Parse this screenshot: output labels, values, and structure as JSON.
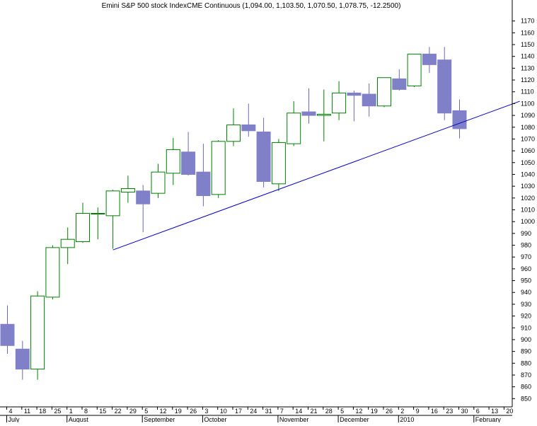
{
  "chart_data": {
    "type": "candlestick",
    "title": "Emini S&P 500 stock IndexCME Continuous (1,094.00, 1,103.50, 1,070.50, 1,078.75, -12.2500)",
    "ylim": [
      843,
      1177
    ],
    "y_ticks": [
      850,
      860,
      870,
      880,
      890,
      900,
      910,
      920,
      930,
      940,
      950,
      960,
      970,
      980,
      990,
      1000,
      1010,
      1020,
      1030,
      1040,
      1050,
      1060,
      1070,
      1080,
      1090,
      1100,
      1110,
      1120,
      1130,
      1140,
      1150,
      1160,
      1170
    ],
    "x_tick_labels": [
      "4",
      "11",
      "18",
      "25",
      "1",
      "8",
      "15",
      "22",
      "29",
      "5",
      "12",
      "19",
      "26",
      "3",
      "10",
      "17",
      "24",
      "31",
      "7",
      "14",
      "21",
      "28",
      "5",
      "12",
      "19",
      "26",
      "2",
      "9",
      "16",
      "23",
      "30",
      "6",
      "13",
      "20"
    ],
    "month_labels": [
      {
        "label": "July",
        "index": 0
      },
      {
        "label": "August",
        "index": 4
      },
      {
        "label": "September",
        "index": 9
      },
      {
        "label": "October",
        "index": 13
      },
      {
        "label": "November",
        "index": 18
      },
      {
        "label": "December",
        "index": 22
      },
      {
        "label": "2010",
        "index": 26
      },
      {
        "label": "February",
        "index": 31
      }
    ],
    "candles": [
      {
        "o": 913,
        "h": 929,
        "l": 888,
        "c": 895
      },
      {
        "o": 892,
        "h": 899,
        "l": 866,
        "c": 875
      },
      {
        "o": 875,
        "h": 941,
        "l": 866,
        "c": 937
      },
      {
        "o": 936,
        "h": 980,
        "l": 934,
        "c": 978
      },
      {
        "o": 978,
        "h": 995,
        "l": 964,
        "c": 985
      },
      {
        "o": 983,
        "h": 1016,
        "l": 982,
        "c": 1007
      },
      {
        "o": 1007,
        "h": 1012,
        "l": 985,
        "c": 1007
      },
      {
        "o": 1005,
        "h": 1027,
        "l": 977,
        "c": 1026
      },
      {
        "o": 1025,
        "h": 1039,
        "l": 1016,
        "c": 1028
      },
      {
        "o": 1026,
        "h": 1031,
        "l": 991,
        "c": 1015
      },
      {
        "o": 1024,
        "h": 1049,
        "l": 1020,
        "c": 1042
      },
      {
        "o": 1041,
        "h": 1071,
        "l": 1031,
        "c": 1061
      },
      {
        "o": 1059,
        "h": 1076,
        "l": 1039,
        "c": 1040
      },
      {
        "o": 1042,
        "h": 1066,
        "l": 1013,
        "c": 1022
      },
      {
        "o": 1023,
        "h": 1069,
        "l": 1020,
        "c": 1068
      },
      {
        "o": 1068,
        "h": 1096,
        "l": 1064,
        "c": 1082
      },
      {
        "o": 1082,
        "h": 1100,
        "l": 1072,
        "c": 1077
      },
      {
        "o": 1076,
        "h": 1088,
        "l": 1029,
        "c": 1034
      },
      {
        "o": 1032,
        "h": 1070,
        "l": 1026,
        "c": 1067
      },
      {
        "o": 1066,
        "h": 1102,
        "l": 1064,
        "c": 1092
      },
      {
        "o": 1093,
        "h": 1113,
        "l": 1083,
        "c": 1090
      },
      {
        "o": 1090,
        "h": 1112,
        "l": 1068,
        "c": 1091
      },
      {
        "o": 1092,
        "h": 1119,
        "l": 1086,
        "c": 1109
      },
      {
        "o": 1109,
        "h": 1111,
        "l": 1085,
        "c": 1107
      },
      {
        "o": 1108,
        "h": 1117,
        "l": 1089,
        "c": 1098
      },
      {
        "o": 1098,
        "h": 1122,
        "l": 1097,
        "c": 1122
      },
      {
        "o": 1121,
        "h": 1129,
        "l": 1111,
        "c": 1112
      },
      {
        "o": 1115,
        "h": 1142,
        "l": 1114,
        "c": 1142
      },
      {
        "o": 1142,
        "h": 1148,
        "l": 1126,
        "c": 1133
      },
      {
        "o": 1137,
        "h": 1148,
        "l": 1086,
        "c": 1092
      },
      {
        "o": 1094,
        "h": 1103.5,
        "l": 1070.5,
        "c": 1078.75
      }
    ],
    "trendline": {
      "from": {
        "index": 7,
        "value": 976
      },
      "to": {
        "index": 34,
        "value": 1102
      }
    },
    "colors": {
      "up_border": "#008000",
      "up_fill": "#ffffff",
      "down_fill": "#8080c8",
      "down_border": "#6a6ab8",
      "trendline": "#0000cc",
      "axis": "#000000"
    },
    "grid": false,
    "legend": "none"
  }
}
